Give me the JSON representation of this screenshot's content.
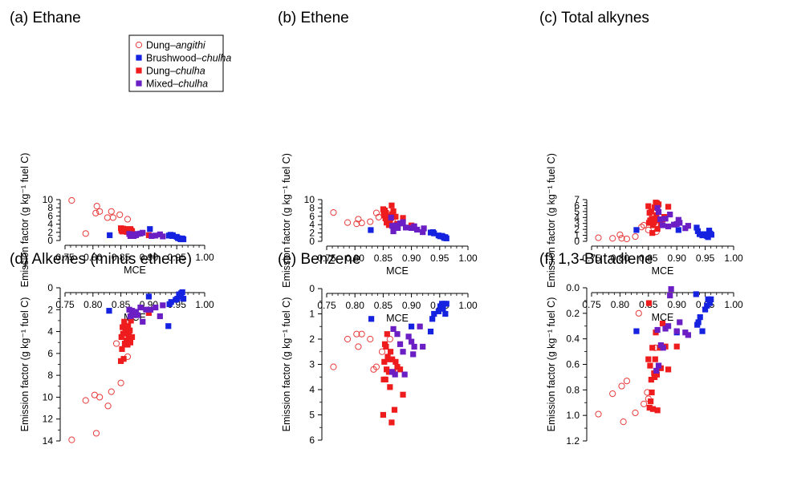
{
  "legend": [
    {
      "key": "dung_angithi",
      "prefix": "Dung–",
      "suffix": "angithi",
      "marker": "open-circle",
      "color": "#e83b3b"
    },
    {
      "key": "brushwood_chulha",
      "prefix": "Brushwood–",
      "suffix": "chulha",
      "marker": "square",
      "color": "#1523e0"
    },
    {
      "key": "dung_chulha",
      "prefix": "Dung–",
      "suffix": "chulha",
      "marker": "square",
      "color": "#ee1c1c"
    },
    {
      "key": "mixed_chulha",
      "prefix": "Mixed–",
      "suffix": "chulha",
      "marker": "square",
      "color": "#6a1ec4"
    }
  ],
  "chart_data": [
    {
      "type": "scatter",
      "title": "(a) Ethane",
      "xlabel": "MCE",
      "ylabel": "Emission factor (g kg⁻¹ fuel C)",
      "xlim": [
        0.75,
        1.0
      ],
      "ylim": [
        0,
        10
      ],
      "xticks": [
        "0.75",
        "0.80",
        "0.85",
        "0.90",
        "0.95",
        "1.00"
      ],
      "yticks": [
        "0",
        "2",
        "4",
        "6",
        "8",
        "10"
      ],
      "series": [
        {
          "name": "Dung–angithi",
          "x": [
            0.762,
            0.787,
            0.805,
            0.807,
            0.812,
            0.826,
            0.833,
            0.836,
            0.848,
            0.862
          ],
          "y": [
            9.8,
            1.7,
            6.7,
            8.4,
            7.1,
            5.6,
            7.1,
            5.6,
            6.3,
            5.2
          ]
        },
        {
          "name": "Brushwood–chulha",
          "x": [
            0.83,
            0.902,
            0.936,
            0.939,
            0.942,
            0.943,
            0.95,
            0.952,
            0.955,
            0.957,
            0.96,
            0.962
          ],
          "y": [
            1.3,
            2.8,
            1.2,
            1.4,
            1.1,
            1.3,
            0.9,
            0.6,
            0.5,
            0.3,
            0.5,
            0.3
          ]
        },
        {
          "name": "Dung–chulha",
          "x": [
            0.85,
            0.851,
            0.852,
            0.853,
            0.854,
            0.855,
            0.856,
            0.857,
            0.858,
            0.86,
            0.861,
            0.862,
            0.863,
            0.864,
            0.866,
            0.867,
            0.868,
            0.87,
            0.9
          ],
          "y": [
            3.0,
            2.4,
            2.7,
            2.2,
            2.9,
            2.5,
            2.6,
            2.3,
            2.8,
            2.5,
            2.1,
            2.7,
            2.4,
            2.6,
            2.2,
            2.8,
            2.5,
            2.3,
            1.3
          ]
        },
        {
          "name": "Mixed–chulha",
          "x": [
            0.865,
            0.867,
            0.87,
            0.873,
            0.877,
            0.88,
            0.885,
            0.889,
            0.905,
            0.912,
            0.92,
            0.925
          ],
          "y": [
            1.6,
            1.1,
            1.5,
            1.1,
            1.3,
            1.6,
            1.7,
            1.9,
            1.1,
            1.2,
            1.5,
            1.0
          ]
        }
      ]
    },
    {
      "type": "scatter",
      "title": "(b) Ethene",
      "xlabel": "MCE",
      "ylabel": "Emission factor (g kg⁻¹ fuel C)",
      "xlim": [
        0.75,
        1.0
      ],
      "ylim": [
        0,
        10
      ],
      "xticks": [
        "0.75",
        "0.80",
        "0.85",
        "0.90",
        "0.95",
        "1.00"
      ],
      "yticks": [
        "0",
        "2",
        "4",
        "6",
        "8",
        "10"
      ],
      "series": [
        {
          "name": "Dung–angithi",
          "x": [
            0.762,
            0.787,
            0.803,
            0.806,
            0.812,
            0.827,
            0.838,
            0.842,
            0.852,
            0.866
          ],
          "y": [
            6.9,
            4.5,
            4.2,
            5.3,
            4.4,
            4.7,
            6.8,
            5.8,
            6.8,
            5.0
          ]
        },
        {
          "name": "Brushwood–chulha",
          "x": [
            0.828,
            0.902,
            0.934,
            0.938,
            0.94,
            0.948,
            0.951,
            0.954,
            0.956,
            0.958,
            0.96,
            0.962
          ],
          "y": [
            2.7,
            3.2,
            2.1,
            2.2,
            1.9,
            1.4,
            1.2,
            1.3,
            1.1,
            0.8,
            1.0,
            0.7
          ]
        },
        {
          "name": "Dung–chulha",
          "x": [
            0.85,
            0.851,
            0.852,
            0.853,
            0.854,
            0.855,
            0.856,
            0.857,
            0.858,
            0.86,
            0.861,
            0.862,
            0.863,
            0.865,
            0.866,
            0.868,
            0.87,
            0.872,
            0.875,
            0.88,
            0.885,
            0.9
          ],
          "y": [
            7.7,
            7.0,
            6.2,
            7.4,
            5.5,
            6.8,
            4.5,
            6.1,
            5.8,
            3.9,
            5.2,
            4.2,
            5.5,
            8.6,
            6.5,
            7.2,
            3.5,
            5.9,
            4.2,
            4.3,
            5.6,
            3.8
          ]
        },
        {
          "name": "Mixed–chulha",
          "x": [
            0.864,
            0.866,
            0.868,
            0.872,
            0.876,
            0.88,
            0.885,
            0.89,
            0.9,
            0.905,
            0.91,
            0.92,
            0.922
          ],
          "y": [
            5.7,
            3.7,
            2.4,
            3.8,
            3.2,
            4.3,
            4.6,
            3.3,
            3.2,
            3.6,
            2.8,
            2.2,
            3.1
          ]
        }
      ]
    },
    {
      "type": "scatter",
      "title": "(c) Total alkynes",
      "xlabel": "MCE",
      "ylabel": "Emission factor (g kg⁻¹ fuel C)",
      "xlim": [
        0.75,
        1.0
      ],
      "ylim": [
        0,
        7
      ],
      "xticks": [
        "0.75",
        "0.80",
        "0.85",
        "0.90",
        "0.95",
        "1.00"
      ],
      "yticks": [
        "0",
        "1",
        "2",
        "3",
        "4",
        "5",
        "6",
        "7"
      ],
      "series": [
        {
          "name": "Dung–angithi",
          "x": [
            0.762,
            0.787,
            0.8,
            0.803,
            0.812,
            0.827,
            0.838,
            0.842,
            0.85,
            0.864
          ],
          "y": [
            0.6,
            0.5,
            1.1,
            0.5,
            0.4,
            0.8,
            2.4,
            2.7,
            1.9,
            1.6
          ]
        },
        {
          "name": "Brushwood–chulha",
          "x": [
            0.829,
            0.903,
            0.935,
            0.937,
            0.94,
            0.945,
            0.95,
            0.953,
            0.955,
            0.957,
            0.959,
            0.961
          ],
          "y": [
            1.9,
            1.9,
            2.3,
            1.7,
            1.2,
            1.0,
            1.2,
            0.9,
            0.7,
            1.8,
            1.3,
            1.1
          ]
        },
        {
          "name": "Dung–chulha",
          "x": [
            0.85,
            0.851,
            0.852,
            0.853,
            0.854,
            0.855,
            0.856,
            0.857,
            0.858,
            0.86,
            0.861,
            0.862,
            0.863,
            0.864,
            0.865,
            0.866,
            0.868,
            0.87,
            0.872,
            0.875,
            0.878,
            0.885
          ],
          "y": [
            5.9,
            3.1,
            4.8,
            3.5,
            3.3,
            5.0,
            3.8,
            1.4,
            2.7,
            3.2,
            5.7,
            3.5,
            6.5,
            4.4,
            6.4,
            2.1,
            6.2,
            3.5,
            2.9,
            3.7,
            4.1,
            5.8
          ]
        },
        {
          "name": "Mixed–chulha",
          "x": [
            0.866,
            0.868,
            0.871,
            0.875,
            0.88,
            0.885,
            0.888,
            0.895,
            0.9,
            0.903,
            0.905,
            0.915,
            0.92
          ],
          "y": [
            5.6,
            4.9,
            3.7,
            2.7,
            3.8,
            2.5,
            4.5,
            2.8,
            2.9,
            3.6,
            3.1,
            2.2,
            2.6
          ]
        }
      ]
    },
    {
      "type": "scatter",
      "title": "(d) Alkenes (minus ethene)",
      "xlabel": "MCE",
      "ylabel": "Emission factor (g kg⁻¹ fuel C)",
      "xlim": [
        0.75,
        1.0
      ],
      "ylim": [
        0,
        14
      ],
      "xticks": [
        "0.75",
        "0.80",
        "0.85",
        "0.90",
        "0.95",
        "1.00"
      ],
      "yticks": [
        "0",
        "2",
        "4",
        "6",
        "8",
        "10",
        "12",
        "14"
      ],
      "series": [
        {
          "name": "Dung–angithi",
          "x": [
            0.762,
            0.787,
            0.803,
            0.806,
            0.812,
            0.827,
            0.833,
            0.842,
            0.85,
            0.862
          ],
          "y": [
            13.9,
            10.3,
            9.8,
            13.3,
            10.0,
            10.8,
            9.5,
            5.1,
            8.7,
            6.3
          ]
        },
        {
          "name": "Brushwood–chulha",
          "x": [
            0.829,
            0.9,
            0.935,
            0.937,
            0.94,
            0.948,
            0.951,
            0.954,
            0.956,
            0.958,
            0.96,
            0.962
          ],
          "y": [
            2.1,
            0.8,
            3.5,
            1.5,
            1.3,
            1.1,
            1.0,
            0.6,
            0.8,
            0.5,
            0.4,
            1.0
          ]
        },
        {
          "name": "Dung–chulha",
          "x": [
            0.85,
            0.851,
            0.852,
            0.853,
            0.854,
            0.855,
            0.856,
            0.857,
            0.858,
            0.86,
            0.861,
            0.862,
            0.863,
            0.864,
            0.866,
            0.867,
            0.868,
            0.87,
            0.9
          ],
          "y": [
            6.7,
            4.5,
            5.6,
            3.6,
            4.2,
            6.5,
            3.1,
            5.1,
            4.0,
            4.8,
            3.8,
            5.2,
            3.5,
            4.3,
            3.9,
            5.0,
            3.0,
            4.5,
            2.3
          ]
        },
        {
          "name": "Mixed–chulha",
          "x": [
            0.865,
            0.867,
            0.87,
            0.873,
            0.877,
            0.88,
            0.885,
            0.889,
            0.895,
            0.903,
            0.912,
            0.92,
            0.925
          ],
          "y": [
            2.0,
            2.6,
            2.1,
            2.5,
            2.2,
            2.5,
            1.8,
            3.1,
            2.0,
            2.0,
            1.8,
            2.6,
            1.6
          ]
        }
      ]
    },
    {
      "type": "scatter",
      "title": "(e) Benzene",
      "xlabel": "MCE",
      "ylabel": "Emission factor (g kg⁻¹ fuel C)",
      "xlim": [
        0.75,
        1.0
      ],
      "ylim": [
        0,
        6
      ],
      "xticks": [
        "0.75",
        "0.80",
        "0.85",
        "0.90",
        "0.95",
        "1.00"
      ],
      "yticks": [
        "0",
        "1",
        "2",
        "3",
        "4",
        "5",
        "6"
      ],
      "series": [
        {
          "name": "Dung–angithi",
          "x": [
            0.762,
            0.787,
            0.803,
            0.806,
            0.812,
            0.827,
            0.833,
            0.838,
            0.848,
            0.862
          ],
          "y": [
            3.1,
            2.0,
            1.8,
            2.3,
            1.8,
            2.0,
            3.2,
            3.1,
            2.5,
            2.0
          ]
        },
        {
          "name": "Brushwood–chulha",
          "x": [
            0.829,
            0.9,
            0.934,
            0.937,
            0.94,
            0.948,
            0.951,
            0.954,
            0.956,
            0.958,
            0.96,
            0.962
          ],
          "y": [
            1.2,
            1.5,
            1.7,
            1.2,
            1.0,
            0.9,
            0.7,
            0.6,
            0.8,
            0.6,
            1.0,
            0.6
          ]
        },
        {
          "name": "Dung–chulha",
          "x": [
            0.85,
            0.851,
            0.852,
            0.853,
            0.854,
            0.855,
            0.856,
            0.857,
            0.858,
            0.86,
            0.861,
            0.862,
            0.863,
            0.865,
            0.866,
            0.868,
            0.87,
            0.872,
            0.875,
            0.88,
            0.885
          ],
          "y": [
            5.0,
            3.6,
            2.9,
            2.2,
            3.6,
            2.3,
            3.2,
            1.8,
            2.7,
            3.3,
            2.8,
            3.9,
            2.5,
            5.3,
            2.8,
            3.3,
            4.8,
            2.9,
            3.1,
            3.2,
            4.2
          ]
        },
        {
          "name": "Mixed–chulha",
          "x": [
            0.866,
            0.868,
            0.871,
            0.875,
            0.88,
            0.885,
            0.888,
            0.895,
            0.9,
            0.903,
            0.905,
            0.915,
            0.92
          ],
          "y": [
            3.3,
            1.6,
            3.4,
            1.8,
            2.2,
            2.5,
            3.4,
            1.9,
            2.1,
            2.6,
            2.3,
            1.5,
            2.3
          ]
        }
      ]
    },
    {
      "type": "scatter",
      "title": "(f) 1,3-Butadiene",
      "xlabel": "MCE",
      "ylabel": "Emission factor (g kg⁻¹ fuel C)",
      "xlim": [
        0.75,
        1.0
      ],
      "ylim": [
        0,
        1.2
      ],
      "xticks": [
        "0.75",
        "0.80",
        "0.85",
        "0.90",
        "0.95",
        "1.00"
      ],
      "yticks": [
        "0.0",
        "0.2",
        "0.4",
        "0.6",
        "0.8",
        "1.0",
        "1.2"
      ],
      "series": [
        {
          "name": "Dung–angithi",
          "x": [
            0.762,
            0.787,
            0.803,
            0.806,
            0.812,
            0.827,
            0.833,
            0.842,
            0.848,
            0.85,
            0.862
          ],
          "y": [
            0.99,
            0.83,
            0.77,
            1.05,
            0.73,
            0.98,
            0.2,
            0.91,
            0.82,
            0.87,
            0.47
          ]
        },
        {
          "name": "Brushwood–chulha",
          "x": [
            0.829,
            0.9,
            0.934,
            0.936,
            0.938,
            0.941,
            0.945,
            0.95,
            0.953,
            0.955,
            0.958,
            0.96
          ],
          "y": [
            0.34,
            0.35,
            0.05,
            0.29,
            0.27,
            0.23,
            0.34,
            0.17,
            0.14,
            0.09,
            0.12,
            0.09
          ]
        },
        {
          "name": "Dung–chulha",
          "x": [
            0.85,
            0.851,
            0.852,
            0.853,
            0.854,
            0.855,
            0.856,
            0.857,
            0.858,
            0.86,
            0.861,
            0.862,
            0.863,
            0.865,
            0.866,
            0.868,
            0.87,
            0.872,
            0.875,
            0.88,
            0.885,
            0.9
          ],
          "y": [
            0.56,
            0.12,
            0.94,
            0.61,
            0.89,
            0.72,
            0.82,
            0.47,
            0.95,
            0.67,
            0.7,
            0.56,
            0.35,
            0.68,
            0.96,
            0.61,
            0.47,
            0.63,
            0.28,
            0.46,
            0.64,
            0.46
          ]
        },
        {
          "name": "Mixed–chulha",
          "x": [
            0.864,
            0.866,
            0.868,
            0.872,
            0.876,
            0.88,
            0.885,
            0.888,
            0.89,
            0.9,
            0.905,
            0.915,
            0.92
          ],
          "y": [
            0.65,
            0.33,
            0.61,
            0.45,
            0.47,
            0.32,
            0.3,
            0.06,
            0.01,
            0.34,
            0.27,
            0.35,
            0.37
          ]
        }
      ]
    }
  ]
}
